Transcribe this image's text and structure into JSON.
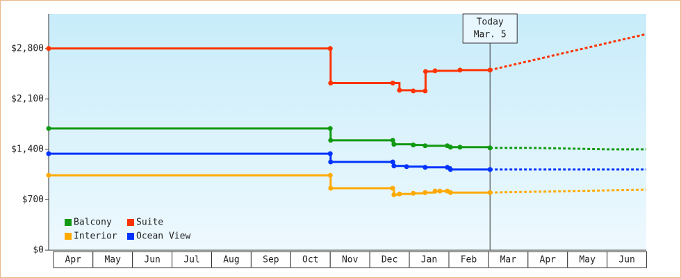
{
  "chart_data": {
    "type": "step-line",
    "categories": [
      "Apr",
      "May",
      "Jun",
      "Jul",
      "Aug",
      "Sep",
      "Oct",
      "Nov",
      "Dec",
      "Jan",
      "Feb",
      "Mar",
      "Apr",
      "May",
      "Jun"
    ],
    "xlim": [
      -0.12,
      14.99
    ],
    "ylim": [
      0,
      3280
    ],
    "yticks": [
      {
        "value": 0,
        "label": "$0"
      },
      {
        "value": 700,
        "label": "$700"
      },
      {
        "value": 1400,
        "label": "$1,400"
      },
      {
        "value": 2100,
        "label": "$2,100"
      },
      {
        "value": 2800,
        "label": "$2,800"
      }
    ],
    "annotation": {
      "x": 11.04,
      "text": [
        "Today",
        "Mar. 5"
      ]
    },
    "legend": "lower left",
    "series": [
      {
        "name": "Balcony",
        "color": "#119911",
        "x": [
          -0.12,
          7.0,
          7.01,
          8.58,
          8.61,
          9.1,
          9.4,
          9.96,
          10.04,
          10.28,
          11.04
        ],
        "values": [
          1690,
          1690,
          1525,
          1525,
          1470,
          1460,
          1450,
          1450,
          1430,
          1430,
          1420
        ],
        "forecast_x": [
          11.04,
          12.09,
          14.02,
          14.99
        ],
        "forecast_values": [
          1420,
          1420,
          1400,
          1400
        ]
      },
      {
        "name": "Suite",
        "color": "#ff3300",
        "x": [
          -0.12,
          7.0,
          7.01,
          8.58,
          8.75,
          9.1,
          9.4,
          9.41,
          9.65,
          10.28,
          11.04
        ],
        "values": [
          2800,
          2800,
          2320,
          2320,
          2220,
          2210,
          2210,
          2480,
          2490,
          2500,
          2500
        ],
        "forecast_x": [
          11.04,
          14.99
        ],
        "forecast_values": [
          2500,
          3000
        ]
      },
      {
        "name": "Interior",
        "color": "#ffaa00",
        "x": [
          -0.12,
          7.0,
          7.01,
          8.58,
          8.61,
          8.75,
          9.1,
          9.4,
          9.65,
          9.77,
          9.96,
          10.04,
          11.04
        ],
        "values": [
          1040,
          1040,
          860,
          860,
          770,
          780,
          790,
          800,
          820,
          820,
          820,
          800,
          800
        ],
        "forecast_x": [
          11.04,
          14.99
        ],
        "forecast_values": [
          800,
          840
        ]
      },
      {
        "name": "Ocean View",
        "color": "#0033ff",
        "x": [
          -0.12,
          7.0,
          7.01,
          8.58,
          8.61,
          8.93,
          9.4,
          9.96,
          10.04,
          11.04
        ],
        "values": [
          1340,
          1340,
          1225,
          1225,
          1170,
          1160,
          1150,
          1150,
          1120,
          1120
        ],
        "forecast_x": [
          11.04,
          14.99
        ],
        "forecast_values": [
          1120,
          1120
        ]
      }
    ]
  }
}
